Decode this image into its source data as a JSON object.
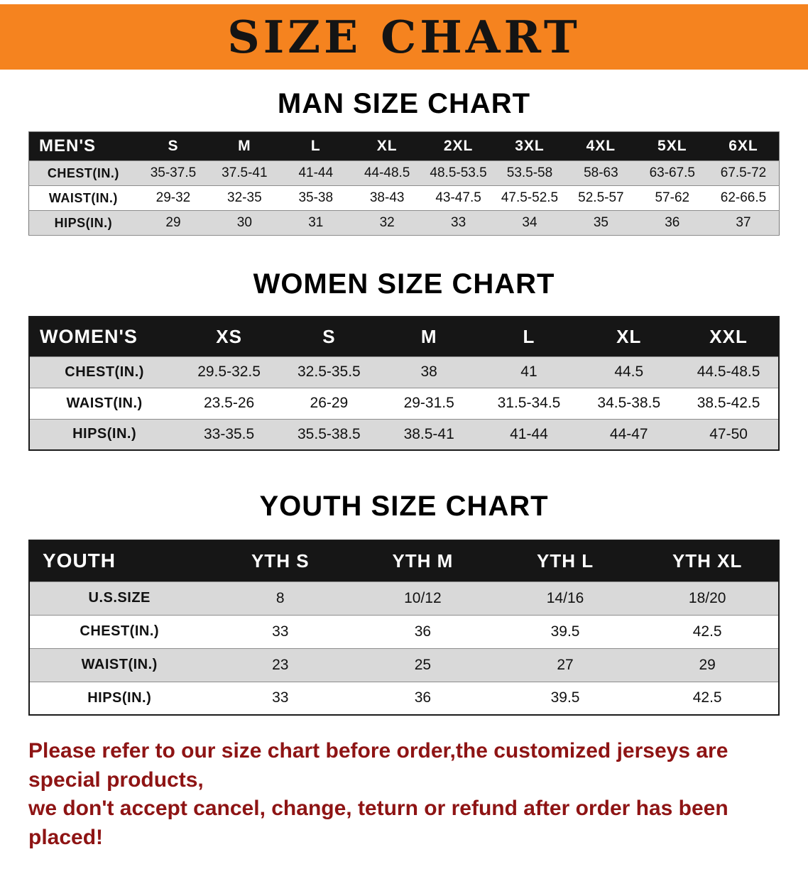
{
  "banner": {
    "title": "SIZE CHART",
    "bg_color": "#f5831f",
    "text_color": "#141414"
  },
  "sections": [
    {
      "title": "MAN SIZE CHART",
      "table": {
        "type": "table",
        "header": [
          "MEN'S",
          "S",
          "M",
          "L",
          "XL",
          "2XL",
          "3XL",
          "4XL",
          "5XL",
          "6XL"
        ],
        "rows": [
          [
            "CHEST(IN.)",
            "35-37.5",
            "37.5-41",
            "41-44",
            "44-48.5",
            "48.5-53.5",
            "53.5-58",
            "58-63",
            "63-67.5",
            "67.5-72"
          ],
          [
            "WAIST(IN.)",
            "29-32",
            "32-35",
            "35-38",
            "38-43",
            "43-47.5",
            "47.5-52.5",
            "52.5-57",
            "57-62",
            "62-66.5"
          ],
          [
            "HIPS(IN.)",
            "29",
            "30",
            "31",
            "32",
            "33",
            "34",
            "35",
            "36",
            "37"
          ]
        ]
      }
    },
    {
      "title": "WOMEN SIZE CHART",
      "table": {
        "type": "table",
        "header": [
          "WOMEN'S",
          "XS",
          "S",
          "M",
          "L",
          "XL",
          "XXL"
        ],
        "rows": [
          [
            "CHEST(IN.)",
            "29.5-32.5",
            "32.5-35.5",
            "38",
            "41",
            "44.5",
            "44.5-48.5"
          ],
          [
            "WAIST(IN.)",
            "23.5-26",
            "26-29",
            "29-31.5",
            "31.5-34.5",
            "34.5-38.5",
            "38.5-42.5"
          ],
          [
            "HIPS(IN.)",
            "33-35.5",
            "35.5-38.5",
            "38.5-41",
            "41-44",
            "44-47",
            "47-50"
          ]
        ]
      }
    },
    {
      "title": "YOUTH SIZE CHART",
      "table": {
        "type": "table",
        "header": [
          "YOUTH",
          "YTH S",
          "YTH M",
          "YTH L",
          "YTH XL"
        ],
        "rows": [
          [
            "U.S.SIZE",
            "8",
            "10/12",
            "14/16",
            "18/20"
          ],
          [
            "CHEST(IN.)",
            "33",
            "36",
            "39.5",
            "42.5"
          ],
          [
            "WAIST(IN.)",
            "23",
            "25",
            "27",
            "29"
          ],
          [
            "HIPS(IN.)",
            "33",
            "36",
            "39.5",
            "42.5"
          ]
        ]
      }
    }
  ],
  "disclaimer": {
    "line1": "Please refer to our size chart before order,the customized jerseys are special products,",
    "line2": "we don't accept cancel, change, teturn or refund after order has been placed!",
    "color": "#8e1414"
  }
}
